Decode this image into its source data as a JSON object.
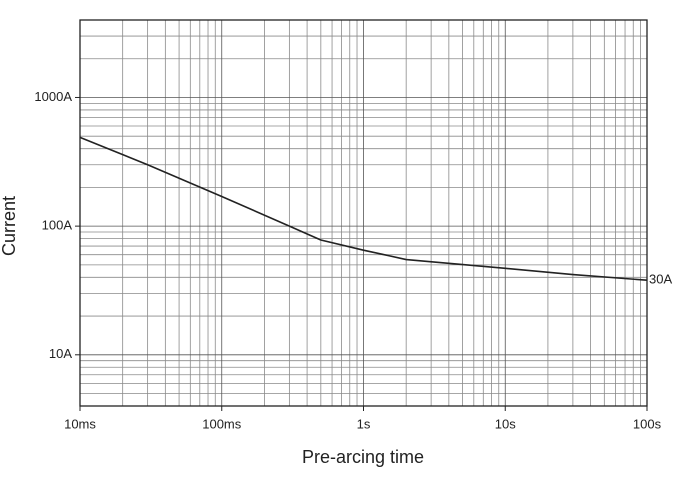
{
  "chart_data": {
    "type": "line",
    "x_label": "Pre-arcing time",
    "y_label": "Current",
    "annotation": "30A",
    "x": [
      0.01,
      0.03,
      0.1,
      0.3,
      0.5,
      1,
      1.5,
      2,
      10,
      30,
      100
    ],
    "series": [
      {
        "name": "Current",
        "color": "#222222",
        "values": [
          490,
          300,
          170,
          100,
          78,
          65,
          59,
          55,
          47,
          42,
          38
        ]
      }
    ],
    "xlog": true,
    "ylog": true,
    "grid": true,
    "xlim": [
      0.01,
      100
    ],
    "ylim": [
      4,
      4000
    ],
    "xticks": [
      {
        "value": 0.01,
        "label": "10ms"
      },
      {
        "value": 0.1,
        "label": "100ms"
      },
      {
        "value": 1,
        "label": "1s"
      },
      {
        "value": 10,
        "label": "10s"
      },
      {
        "value": 100,
        "label": "100s"
      }
    ],
    "yticks": [
      {
        "value": 10,
        "label": "10A"
      },
      {
        "value": 100,
        "label": "100A"
      },
      {
        "value": 1000,
        "label": "1000A"
      }
    ]
  }
}
